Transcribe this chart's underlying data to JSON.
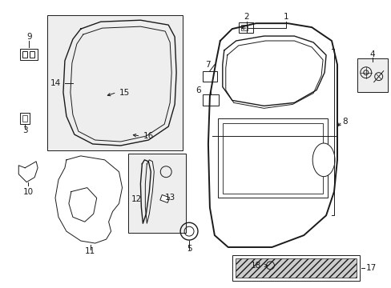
{
  "bg_color": "#ffffff",
  "line_color": "#1a1a1a",
  "fig_width": 4.89,
  "fig_height": 3.6,
  "dpi": 100,
  "gray_fill": "#d8d8d8",
  "light_gray": "#eeeeee"
}
